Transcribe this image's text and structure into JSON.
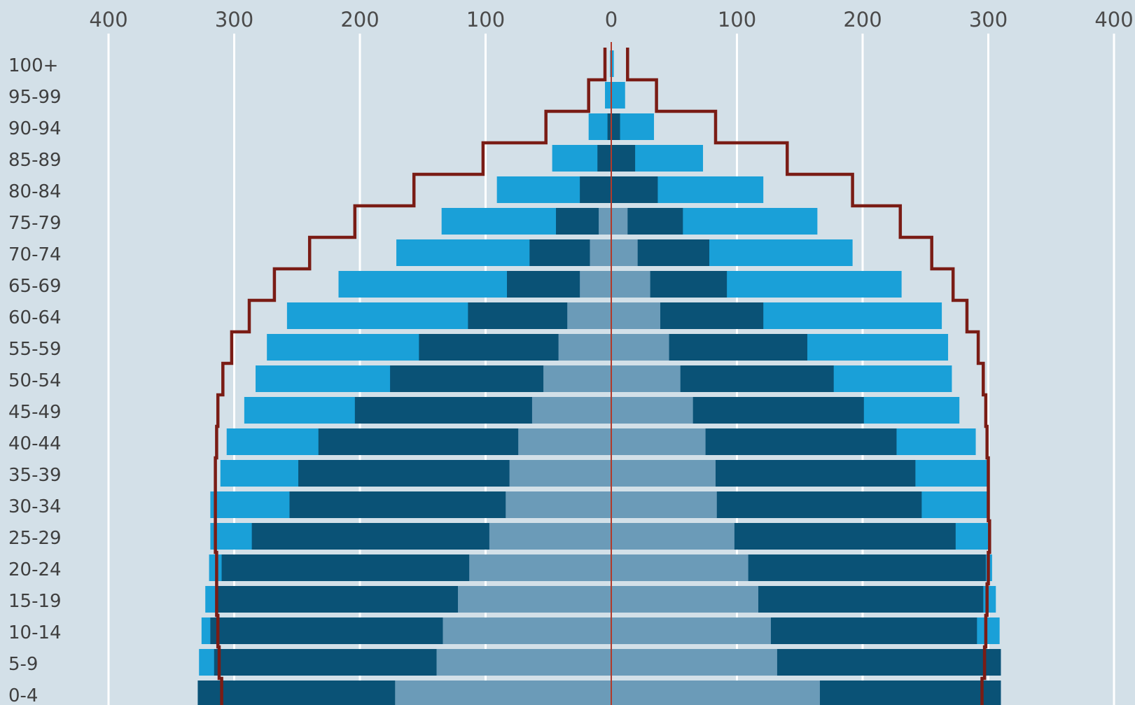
{
  "chart_data": {
    "type": "bar",
    "subtype": "population-pyramid",
    "orientation": "horizontal",
    "title": "",
    "xlabel": "",
    "ylabel": "",
    "xlim": [
      -400,
      400
    ],
    "x_ticks": [
      {
        "value": -400,
        "label": "400"
      },
      {
        "value": -300,
        "label": "300"
      },
      {
        "value": -200,
        "label": "200"
      },
      {
        "value": -100,
        "label": "100"
      },
      {
        "value": 0,
        "label": "0"
      },
      {
        "value": 100,
        "label": "100"
      },
      {
        "value": 200,
        "label": "200"
      },
      {
        "value": 300,
        "label": "300"
      },
      {
        "value": 400,
        "label": "400"
      }
    ],
    "grid": "vertical",
    "categories": [
      "100+",
      "95-99",
      "90-94",
      "85-89",
      "80-84",
      "75-79",
      "70-74",
      "65-69",
      "60-64",
      "55-59",
      "50-54",
      "45-49",
      "40-44",
      "35-39",
      "30-34",
      "25-29",
      "20-24",
      "15-19",
      "10-14",
      "5-9",
      "0-4"
    ],
    "series": [
      {
        "side": "left",
        "layer": "outer",
        "color": "#1aa0d8",
        "values": [
          1,
          5,
          18,
          47,
          91,
          135,
          171,
          217,
          258,
          274,
          283,
          292,
          306,
          311,
          319,
          319,
          320,
          323,
          326,
          328,
          329
        ]
      },
      {
        "side": "left",
        "layer": "middle",
        "color": "#0a5276",
        "values": [
          0,
          0,
          3,
          11,
          25,
          44,
          65,
          83,
          114,
          153,
          176,
          204,
          233,
          249,
          256,
          286,
          310,
          314,
          319,
          316,
          329
        ]
      },
      {
        "side": "left",
        "layer": "inner",
        "color": "#6b9bb8",
        "values": [
          0,
          0,
          0,
          0,
          0,
          10,
          17,
          25,
          35,
          42,
          54,
          63,
          74,
          81,
          84,
          97,
          113,
          122,
          134,
          139,
          172
        ]
      },
      {
        "side": "right",
        "layer": "outer",
        "color": "#1aa0d8",
        "values": [
          2,
          11,
          34,
          73,
          121,
          164,
          192,
          231,
          263,
          268,
          271,
          277,
          290,
          300,
          300,
          300,
          303,
          306,
          309,
          310,
          310
        ]
      },
      {
        "side": "right",
        "layer": "middle",
        "color": "#0a5276",
        "values": [
          0,
          0,
          7,
          19,
          37,
          57,
          78,
          92,
          121,
          156,
          177,
          201,
          227,
          242,
          247,
          274,
          298,
          296,
          291,
          310,
          310
        ]
      },
      {
        "side": "right",
        "layer": "inner",
        "color": "#6b9bb8",
        "values": [
          0,
          0,
          0,
          0,
          0,
          13,
          21,
          31,
          39,
          46,
          55,
          65,
          75,
          83,
          84,
          98,
          109,
          117,
          127,
          132,
          166
        ]
      }
    ],
    "outline": {
      "color": "#7a1c15",
      "left": [
        5,
        18,
        52,
        102,
        157,
        204,
        240,
        268,
        288,
        302,
        309,
        313,
        314,
        315,
        315,
        315,
        314,
        314,
        313,
        312,
        310
      ],
      "right": [
        13,
        36,
        83,
        140,
        192,
        230,
        255,
        272,
        283,
        292,
        296,
        298,
        299,
        300,
        300,
        301,
        300,
        299,
        298,
        297,
        295
      ]
    }
  }
}
